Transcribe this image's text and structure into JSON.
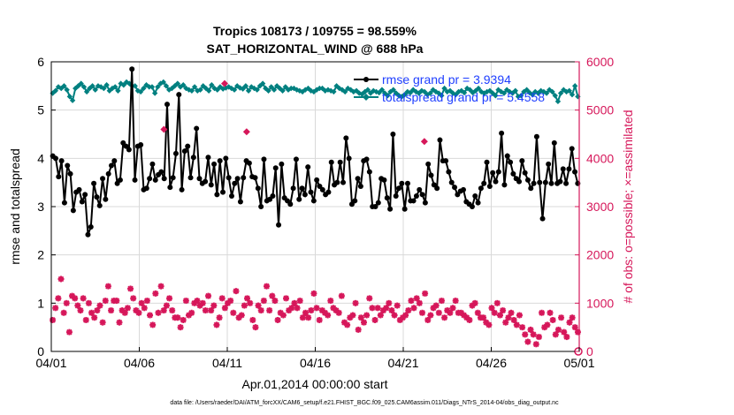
{
  "chart_data": {
    "type": "line",
    "title_line1": "Tropics 108173 / 109755 = 98.559%",
    "title_line2": "SAT_HORIZONTAL_WIND @ 688 hPa",
    "xlabel": "Apr.01,2014 00:00:00 start",
    "ylabel_left": "rmse and totalspread",
    "ylabel_right": "# of obs: o=possible; ×=assimilated",
    "footer": "data file: /Users/raeder/DAI/ATM_forcXX/CAM6_setup/f.e21.FHIST_BGC.f09_025.CAM6assim.011/Diags_NTrS_2014-04/obs_diag_output.nc",
    "x_range": [
      0,
      30
    ],
    "x_ticks": [
      0,
      5,
      10,
      15,
      20,
      25,
      30
    ],
    "x_tick_labels": [
      "04/01",
      "04/06",
      "04/11",
      "04/16",
      "04/21",
      "04/26",
      "05/01"
    ],
    "ylim_left": [
      0,
      6
    ],
    "y_ticks_left": [
      "0",
      "1",
      "2",
      "3",
      "4",
      "5",
      "6"
    ],
    "ylim_right": [
      0,
      6000
    ],
    "y_ticks_right": [
      "0",
      "1000",
      "2000",
      "3000",
      "4000",
      "5000",
      "6000"
    ],
    "colors": {
      "rmse": "#000000",
      "spread": "#008080",
      "obs": "#d6175a",
      "legend": "#1f3fff",
      "grid": "#d9d9d9",
      "right_axis": "#d6175a"
    },
    "legend": [
      {
        "label": "rmse grand pr = 3.9394",
        "series": "rmse"
      },
      {
        "label": "totalspread grand pr = 5.4558",
        "series": "spread"
      }
    ],
    "series": [
      {
        "name": "rmse",
        "axis": "left",
        "values": [
          4.05,
          4.0,
          3.62,
          3.95,
          3.08,
          3.85,
          3.68,
          2.92,
          3.3,
          3.35,
          3.1,
          3.25,
          2.42,
          2.58,
          3.48,
          3.2,
          3.02,
          3.58,
          3.15,
          3.68,
          3.85,
          3.95,
          3.48,
          3.55,
          4.32,
          4.25,
          4.18,
          5.85,
          3.55,
          4.25,
          4.28,
          3.35,
          3.38,
          3.58,
          3.88,
          3.55,
          3.66,
          3.72,
          3.58,
          5.12,
          3.4,
          3.6,
          4.1,
          5.32,
          3.35,
          4.15,
          4.25,
          3.6,
          4.02,
          4.62,
          3.58,
          3.48,
          3.52,
          4.02,
          3.45,
          3.88,
          3.25,
          3.95,
          3.3,
          4.0,
          3.6,
          3.22,
          3.48,
          3.58,
          3.1,
          3.6,
          3.95,
          3.9,
          3.62,
          3.6,
          3.38,
          3.0,
          3.98,
          3.12,
          3.15,
          3.22,
          3.8,
          2.62,
          3.88,
          3.18,
          3.12,
          3.05,
          3.38,
          3.98,
          3.15,
          3.38,
          3.25,
          3.82,
          3.3,
          3.12,
          3.55,
          3.42,
          3.35,
          3.25,
          3.3,
          3.92,
          3.45,
          3.5,
          3.92,
          3.5,
          4.42,
          4.0,
          3.05,
          3.12,
          3.58,
          3.42,
          3.95,
          3.98,
          3.72,
          3.0,
          3.0,
          3.08,
          3.58,
          3.55,
          3.18,
          2.95,
          4.5,
          3.22,
          3.38,
          3.48,
          2.95,
          3.48,
          3.12,
          3.12,
          3.22,
          3.35,
          3.25,
          3.08,
          3.88,
          3.65,
          3.45,
          3.38,
          4.38,
          3.95,
          3.95,
          3.72,
          3.5,
          3.4,
          3.25,
          3.32,
          3.35,
          3.1,
          3.05,
          3.0,
          3.22,
          3.08,
          3.38,
          3.48,
          3.92,
          3.42,
          3.7,
          3.52,
          3.72,
          4.52,
          3.45,
          4.05,
          3.92,
          3.68,
          3.58,
          3.52,
          3.95,
          3.7,
          3.55,
          3.38,
          3.48,
          4.45,
          3.5,
          2.75,
          3.5,
          3.88,
          3.48,
          4.32,
          3.48,
          3.52,
          3.78,
          3.48,
          3.78,
          4.2,
          3.72,
          3.48
        ]
      },
      {
        "name": "totalspread",
        "axis": "left",
        "values": [
          5.35,
          5.4,
          5.48,
          5.45,
          5.5,
          5.42,
          5.28,
          5.2,
          5.45,
          5.5,
          5.55,
          5.48,
          5.38,
          5.45,
          5.5,
          5.42,
          5.5,
          5.48,
          5.45,
          5.52,
          5.4,
          5.45,
          5.48,
          5.4,
          5.55,
          5.52,
          5.58,
          5.55,
          5.5,
          5.5,
          5.4,
          5.38,
          5.45,
          5.52,
          5.48,
          5.48,
          5.35,
          5.48,
          5.55,
          5.58,
          5.5,
          5.42,
          5.45,
          5.5,
          5.55,
          5.48,
          5.52,
          5.45,
          5.42,
          5.4,
          5.48,
          5.4,
          5.42,
          5.5,
          5.45,
          5.4,
          5.52,
          5.45,
          5.42,
          5.48,
          5.44,
          5.46,
          5.48,
          5.45,
          5.42,
          5.5,
          5.46,
          5.44,
          5.5,
          5.4,
          5.48,
          5.45,
          5.42,
          5.5,
          5.55,
          5.45,
          5.4,
          5.48,
          5.42,
          5.5,
          5.45,
          5.4,
          5.48,
          5.42,
          5.45,
          5.45,
          5.42,
          5.4,
          5.38,
          5.42,
          5.45,
          5.4,
          5.38,
          5.42,
          5.45,
          5.45,
          5.4,
          5.42,
          5.4,
          5.38,
          5.5,
          5.45,
          5.42,
          5.38,
          5.45,
          5.42,
          5.38,
          5.4,
          5.35,
          5.33,
          5.38,
          5.42,
          5.35,
          5.4,
          5.38,
          5.36,
          5.42,
          5.35,
          5.3,
          5.38,
          5.42,
          5.35,
          5.3,
          5.28,
          5.32,
          5.38,
          5.36,
          5.42,
          5.38,
          5.35,
          5.4,
          5.38,
          5.32,
          5.35,
          5.42,
          5.38,
          5.35,
          5.3,
          5.45,
          5.38,
          5.4,
          5.35,
          5.32,
          5.38,
          5.4,
          5.36,
          5.45,
          5.42,
          5.36,
          5.4,
          5.45,
          5.38,
          5.35,
          5.38,
          5.4,
          5.35,
          5.3,
          5.42,
          5.38,
          5.35,
          5.42,
          5.38,
          5.35,
          5.4,
          5.28,
          5.3,
          5.38,
          5.42,
          5.36,
          5.32,
          5.38,
          5.35,
          5.4,
          5.38,
          5.35,
          5.42,
          5.38,
          5.3,
          5.18,
          5.35,
          5.42,
          5.38,
          5.4,
          5.32,
          5.5,
          5.28
        ]
      },
      {
        "name": "obs_assimilated",
        "axis": "right",
        "values": [
          650,
          900,
          1100,
          1500,
          800,
          1000,
          400,
          1150,
          1100,
          950,
          850,
          1100,
          650,
          1000,
          800,
          700,
          850,
          950,
          600,
          1050,
          1350,
          850,
          1050,
          1050,
          600,
          850,
          800,
          900,
          1300,
          1100,
          850,
          800,
          1000,
          900,
          1050,
          750,
          550,
          1200,
          800,
          1350,
          850,
          950,
          1100,
          850,
          700,
          700,
          500,
          650,
          1050,
          750,
          800,
          1000,
          1050,
          950,
          1000,
          850,
          1150,
          850,
          950,
          550,
          700,
          1100,
          900,
          1000,
          1050,
          800,
          1250,
          700,
          750,
          950,
          1100,
          1000,
          650,
          500,
          950,
          850,
          1050,
          1350,
          850,
          1150,
          1050,
          650,
          800,
          750,
          1100,
          850,
          900,
          1000,
          900,
          1050,
          700,
          800,
          700,
          850,
          1200,
          900,
          650,
          850,
          800,
          750,
          1050,
          900,
          850,
          800,
          1150,
          600,
          550,
          700,
          750,
          1000,
          450,
          700,
          600,
          750,
          1100,
          900,
          650,
          900,
          750,
          850,
          900,
          1000,
          850,
          750,
          950,
          650,
          700,
          750,
          850,
          1050,
          900,
          1100,
          1000,
          800,
          1200,
          650,
          750,
          900,
          950,
          800,
          1050,
          700,
          850,
          800,
          900,
          1050,
          800,
          800,
          750,
          700,
          650,
          950,
          1000,
          800,
          700,
          700,
          600,
          550,
          900,
          800,
          1000,
          750,
          850,
          600,
          700,
          800,
          650,
          550,
          750,
          500,
          350,
          200,
          450,
          350,
          150,
          300,
          800,
          500,
          550,
          800,
          650,
          350,
          450,
          700,
          400,
          300,
          600,
          700,
          500,
          400
        ]
      },
      {
        "name": "obs_possible_marker",
        "axis": "right",
        "values": [
          0
        ]
      }
    ],
    "highlight_points": [
      {
        "x": 6.4,
        "y": 4.6
      },
      {
        "x": 9.85,
        "y": 5.55
      },
      {
        "x": 11.1,
        "y": 4.55
      },
      {
        "x": 21.2,
        "y": 4.35
      }
    ]
  }
}
